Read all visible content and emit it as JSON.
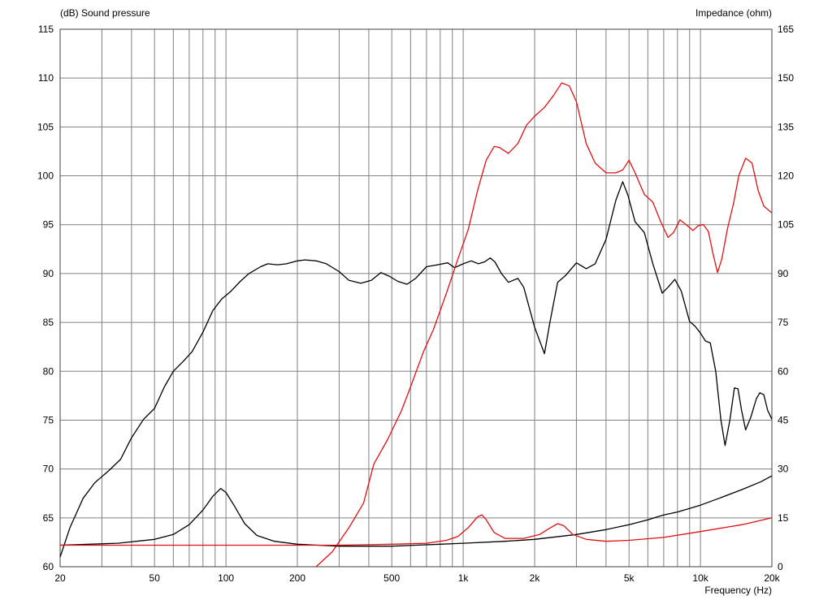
{
  "chart_data": {
    "type": "line",
    "y_left_title": "(dB)  Sound pressure",
    "y_right_title": "Impedance  (ohm)",
    "x_title": "Frequency  (Hz)",
    "x_scale": "log",
    "x_range": [
      20,
      20000
    ],
    "y_left_range": [
      60,
      115
    ],
    "y_right_range": [
      0,
      165
    ],
    "grid": true,
    "x_ticks": [
      {
        "value": 20,
        "label": "20"
      },
      {
        "value": 50,
        "label": "50"
      },
      {
        "value": 100,
        "label": "100"
      },
      {
        "value": 200,
        "label": "200"
      },
      {
        "value": 500,
        "label": "500"
      },
      {
        "value": 1000,
        "label": "1k"
      },
      {
        "value": 2000,
        "label": "2k"
      },
      {
        "value": 5000,
        "label": "5k"
      },
      {
        "value": 10000,
        "label": "10k"
      },
      {
        "value": 20000,
        "label": "20k"
      }
    ],
    "y_left_ticks": [
      "60",
      "65",
      "70",
      "75",
      "80",
      "85",
      "90",
      "95",
      "100",
      "105",
      "110",
      "115"
    ],
    "y_right_ticks": [
      "0",
      "15",
      "30",
      "45",
      "60",
      "75",
      "90",
      "105",
      "120",
      "135",
      "150",
      "165"
    ],
    "colors": {
      "black": "#000000",
      "red": "#e01010",
      "grid": "#808080"
    },
    "series": [
      {
        "color": "black",
        "axis": "left",
        "points": [
          [
            20,
            61
          ],
          [
            22,
            64
          ],
          [
            25,
            67
          ],
          [
            28,
            68.6
          ],
          [
            32,
            69.8
          ],
          [
            36,
            71
          ],
          [
            40,
            73.2
          ],
          [
            45,
            75.1
          ],
          [
            50,
            76.2
          ],
          [
            55,
            78.4
          ],
          [
            60,
            80
          ],
          [
            66,
            81
          ],
          [
            72,
            82
          ],
          [
            80,
            84
          ],
          [
            88,
            86.2
          ],
          [
            96,
            87.4
          ],
          [
            105,
            88.2
          ],
          [
            115,
            89.2
          ],
          [
            125,
            90
          ],
          [
            140,
            90.7
          ],
          [
            150,
            91
          ],
          [
            165,
            90.9
          ],
          [
            180,
            91
          ],
          [
            200,
            91.3
          ],
          [
            215,
            91.4
          ],
          [
            240,
            91.3
          ],
          [
            265,
            91
          ],
          [
            300,
            90.2
          ],
          [
            330,
            89.3
          ],
          [
            370,
            89
          ],
          [
            410,
            89.3
          ],
          [
            450,
            90.1
          ],
          [
            490,
            89.7
          ],
          [
            530,
            89.2
          ],
          [
            580,
            88.9
          ],
          [
            630,
            89.5
          ],
          [
            700,
            90.7
          ],
          [
            780,
            90.9
          ],
          [
            860,
            91.1
          ],
          [
            920,
            90.6
          ],
          [
            1000,
            91
          ],
          [
            1080,
            91.3
          ],
          [
            1160,
            91
          ],
          [
            1230,
            91.2
          ],
          [
            1300,
            91.6
          ],
          [
            1360,
            91.2
          ],
          [
            1450,
            90
          ],
          [
            1550,
            89.1
          ],
          [
            1700,
            89.5
          ],
          [
            1800,
            88.6
          ],
          [
            2000,
            84.5
          ],
          [
            2200,
            81.8
          ],
          [
            2320,
            85
          ],
          [
            2500,
            89.1
          ],
          [
            2700,
            89.8
          ],
          [
            3000,
            91.1
          ],
          [
            3300,
            90.5
          ],
          [
            3600,
            91
          ],
          [
            4000,
            93.5
          ],
          [
            4400,
            97.5
          ],
          [
            4700,
            99.4
          ],
          [
            4950,
            98
          ],
          [
            5300,
            95.3
          ],
          [
            5800,
            94.2
          ],
          [
            6300,
            91
          ],
          [
            6900,
            88
          ],
          [
            7300,
            88.6
          ],
          [
            7800,
            89.4
          ],
          [
            8300,
            88.2
          ],
          [
            9000,
            85.1
          ],
          [
            9500,
            84.6
          ],
          [
            10000,
            83.9
          ],
          [
            10500,
            83.1
          ],
          [
            11000,
            82.9
          ],
          [
            11600,
            80
          ],
          [
            12200,
            75
          ],
          [
            12700,
            72.4
          ],
          [
            13300,
            75
          ],
          [
            13900,
            78.3
          ],
          [
            14400,
            78.2
          ],
          [
            14900,
            76
          ],
          [
            15500,
            74
          ],
          [
            16300,
            75.3
          ],
          [
            17200,
            77.2
          ],
          [
            17800,
            77.8
          ],
          [
            18500,
            77.6
          ],
          [
            19200,
            76
          ],
          [
            20000,
            75.1
          ]
        ]
      },
      {
        "color": "red",
        "axis": "left",
        "points": [
          [
            240,
            60
          ],
          [
            280,
            61.5
          ],
          [
            330,
            64
          ],
          [
            380,
            66.5
          ],
          [
            420,
            70.5
          ],
          [
            480,
            73
          ],
          [
            550,
            76
          ],
          [
            600,
            78.4
          ],
          [
            680,
            82
          ],
          [
            750,
            84.3
          ],
          [
            850,
            88
          ],
          [
            950,
            91.5
          ],
          [
            1050,
            94.5
          ],
          [
            1150,
            98.5
          ],
          [
            1250,
            101.6
          ],
          [
            1350,
            103
          ],
          [
            1420,
            102.9
          ],
          [
            1550,
            102.3
          ],
          [
            1700,
            103.3
          ],
          [
            1850,
            105.2
          ],
          [
            2000,
            106.1
          ],
          [
            2200,
            107
          ],
          [
            2400,
            108.2
          ],
          [
            2600,
            109.5
          ],
          [
            2800,
            109.2
          ],
          [
            3000,
            107.6
          ],
          [
            3300,
            103.3
          ],
          [
            3600,
            101.3
          ],
          [
            4000,
            100.3
          ],
          [
            4400,
            100.3
          ],
          [
            4700,
            100.6
          ],
          [
            5000,
            101.6
          ],
          [
            5300,
            100.3
          ],
          [
            5800,
            98.1
          ],
          [
            6300,
            97.3
          ],
          [
            6800,
            95.3
          ],
          [
            7300,
            93.7
          ],
          [
            7700,
            94.2
          ],
          [
            8200,
            95.5
          ],
          [
            8800,
            94.9
          ],
          [
            9300,
            94.4
          ],
          [
            9800,
            94.9
          ],
          [
            10300,
            95
          ],
          [
            10800,
            94.3
          ],
          [
            11300,
            92
          ],
          [
            11800,
            90.1
          ],
          [
            12300,
            91.5
          ],
          [
            13000,
            94.6
          ],
          [
            13800,
            97.2
          ],
          [
            14500,
            100
          ],
          [
            15500,
            101.8
          ],
          [
            16500,
            101.3
          ],
          [
            17500,
            98.5
          ],
          [
            18500,
            96.9
          ],
          [
            20000,
            96.2
          ]
        ]
      },
      {
        "color": "black",
        "axis": "left",
        "points": [
          [
            20,
            62.2
          ],
          [
            35,
            62.4
          ],
          [
            50,
            62.8
          ],
          [
            60,
            63.3
          ],
          [
            70,
            64.3
          ],
          [
            80,
            65.8
          ],
          [
            88,
            67.2
          ],
          [
            95,
            68
          ],
          [
            100,
            67.6
          ],
          [
            108,
            66.3
          ],
          [
            120,
            64.4
          ],
          [
            135,
            63.2
          ],
          [
            160,
            62.6
          ],
          [
            200,
            62.3
          ],
          [
            300,
            62.1
          ],
          [
            500,
            62.1
          ],
          [
            800,
            62.3
          ],
          [
            1000,
            62.4
          ],
          [
            1500,
            62.6
          ],
          [
            2000,
            62.8
          ],
          [
            3000,
            63.3
          ],
          [
            4000,
            63.8
          ],
          [
            5000,
            64.3
          ],
          [
            6000,
            64.8
          ],
          [
            7000,
            65.3
          ],
          [
            8000,
            65.6
          ],
          [
            10000,
            66.3
          ],
          [
            12000,
            67
          ],
          [
            15000,
            67.9
          ],
          [
            18000,
            68.7
          ],
          [
            20000,
            69.3
          ]
        ]
      },
      {
        "color": "red",
        "axis": "left",
        "points": [
          [
            20,
            62.2
          ],
          [
            100,
            62.2
          ],
          [
            300,
            62.2
          ],
          [
            500,
            62.3
          ],
          [
            700,
            62.4
          ],
          [
            850,
            62.7
          ],
          [
            950,
            63.1
          ],
          [
            1050,
            64
          ],
          [
            1150,
            65.1
          ],
          [
            1200,
            65.3
          ],
          [
            1250,
            64.8
          ],
          [
            1350,
            63.5
          ],
          [
            1500,
            62.9
          ],
          [
            1800,
            62.9
          ],
          [
            2100,
            63.3
          ],
          [
            2300,
            63.9
          ],
          [
            2500,
            64.4
          ],
          [
            2650,
            64.2
          ],
          [
            2900,
            63.3
          ],
          [
            3300,
            62.8
          ],
          [
            4000,
            62.6
          ],
          [
            5000,
            62.7
          ],
          [
            7000,
            63
          ],
          [
            10000,
            63.6
          ],
          [
            15000,
            64.3
          ],
          [
            20000,
            65
          ]
        ]
      }
    ]
  }
}
